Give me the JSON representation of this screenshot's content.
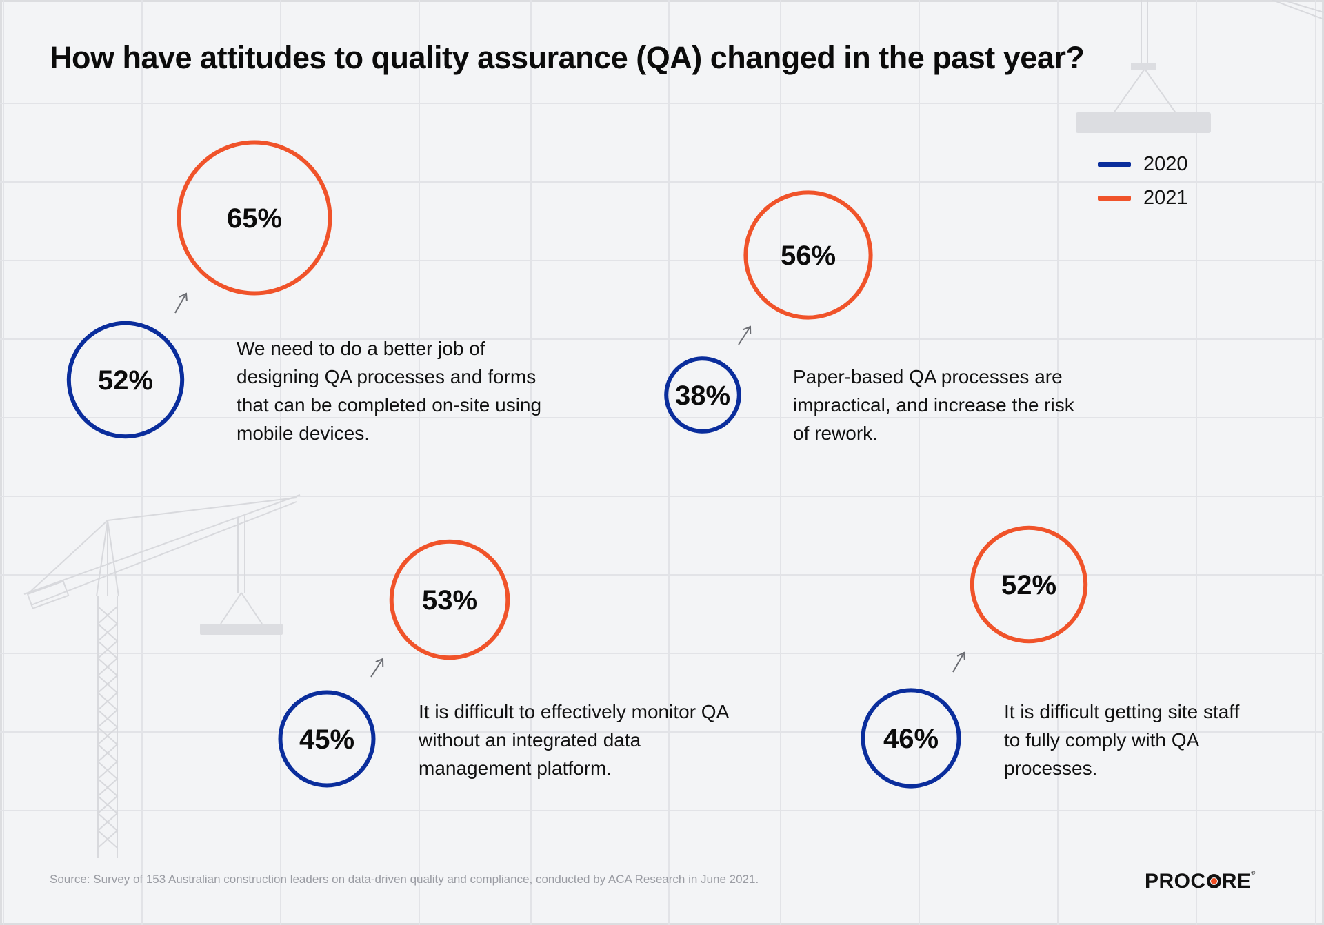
{
  "title": "How have attitudes to quality assurance (QA) changed in the past year?",
  "legend": [
    {
      "label": "2020",
      "color": "#0a2d9c"
    },
    {
      "label": "2021",
      "color": "#f0532a"
    }
  ],
  "chart_data": {
    "type": "bubble-comparison",
    "title": "How have attitudes to quality assurance (QA) changed in the past year?",
    "unit": "%",
    "series": [
      {
        "name": "2020",
        "color": "#0a2d9c"
      },
      {
        "name": "2021",
        "color": "#f0532a"
      }
    ],
    "statements": [
      {
        "text": "We need to do a better job of designing QA processes and forms that can be completed on-site using mobile devices.",
        "value_2020": 52,
        "value_2021": 65,
        "label_2020": "52%",
        "label_2021": "65%"
      },
      {
        "text": "Paper-based QA processes are impractical, and increase the risk of rework.",
        "value_2020": 38,
        "value_2021": 56,
        "label_2020": "38%",
        "label_2021": "56%"
      },
      {
        "text": "It is difficult to effectively monitor QA without an integrated data management platform.",
        "value_2020": 45,
        "value_2021": 53,
        "label_2020": "45%",
        "label_2021": "53%"
      },
      {
        "text": "It is difficult getting site staff to fully comply with QA processes.",
        "value_2020": 46,
        "value_2021": 52,
        "label_2020": "46%",
        "label_2021": "52%"
      }
    ]
  },
  "source": "Source: Survey of 153 Australian construction leaders on data-driven quality and compliance, conducted by ACA Research in June 2021.",
  "brand": {
    "pre": "PROC",
    "post": "RE",
    "mark": "®"
  }
}
